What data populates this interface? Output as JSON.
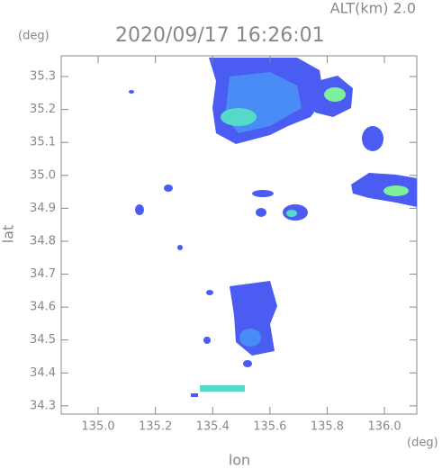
{
  "map": {
    "altitude_label": "ALT(km)  2.0",
    "title": "2020/09/17 16:26:01",
    "y_unit": "(deg)",
    "x_unit": "(deg)",
    "ylabel": "lat",
    "xlabel": "lon",
    "xlim": [
      134.871,
      136.113
    ],
    "ylim": [
      34.275,
      35.363
    ],
    "xticks": [
      {
        "value": 135.0,
        "label": "135.0"
      },
      135.2,
      135.4,
      135.6,
      135.8,
      {
        "value": 136.0,
        "label": "136.0"
      }
    ],
    "yticks": [
      34.3,
      34.4,
      34.5,
      34.6,
      34.7,
      34.8,
      34.9,
      {
        "value": 35.0,
        "label": "35.0"
      },
      35.1,
      35.2,
      35.3
    ]
  }
}
